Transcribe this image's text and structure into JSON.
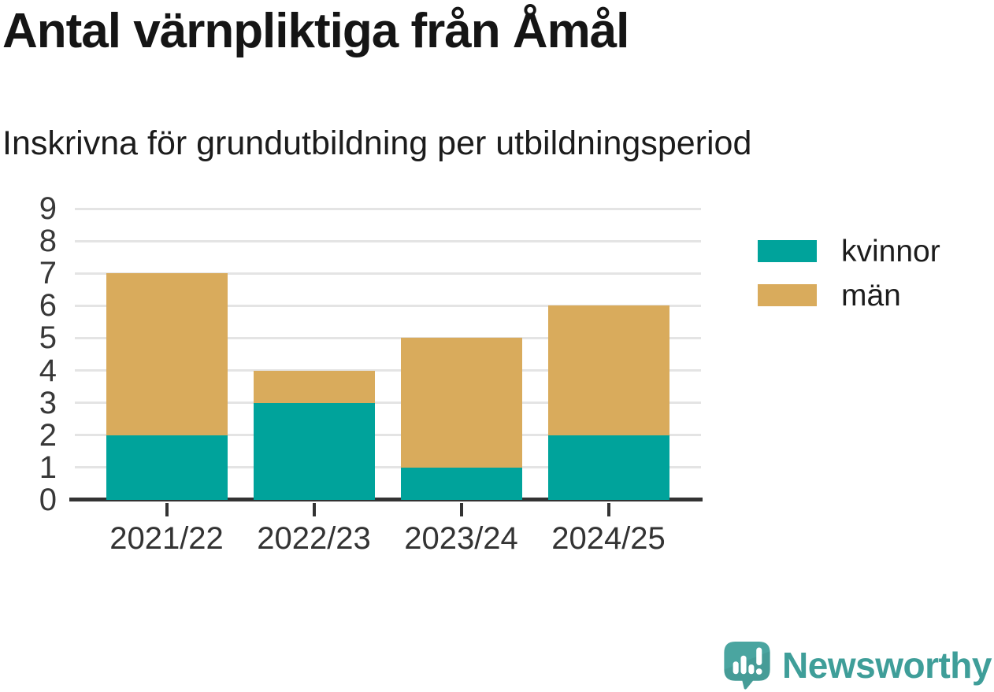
{
  "header": {
    "title": "Antal värnpliktiga från Åmål",
    "subtitle": "Inskrivna för grundutbildning per utbildningsperiod"
  },
  "chart_data": {
    "type": "bar",
    "stacked": true,
    "title": "Antal värnpliktiga från Åmål",
    "subtitle": "Inskrivna för grundutbildning per utbildningsperiod",
    "xlabel": "",
    "ylabel": "",
    "categories": [
      "2021/22",
      "2022/23",
      "2023/24",
      "2024/25"
    ],
    "series": [
      {
        "name": "kvinnor",
        "color": "#00a39b",
        "values": [
          2,
          3,
          1,
          2
        ]
      },
      {
        "name": "män",
        "color": "#d9ab5c",
        "values": [
          5,
          1,
          4,
          4
        ]
      }
    ],
    "stack_totals": [
      7,
      4,
      5,
      6
    ],
    "ylim": [
      0,
      9
    ],
    "yticks": [
      0,
      1,
      2,
      3,
      4,
      5,
      6,
      7,
      8,
      9
    ],
    "grid": "horizontal",
    "legend_position": "right"
  },
  "colors": {
    "kvinnor": "#00a39b",
    "man": "#d9ab5c",
    "gridline": "#e4e4e4",
    "axis": "#333333",
    "text": "#1c1c1c",
    "brand_teal": "#3f9e99",
    "logo_bubble": "#4aa5a0"
  },
  "branding": {
    "wordmark": "Newsworthy",
    "logo_icon": "newsworthy-speech-bubble-bar-chart-icon"
  }
}
